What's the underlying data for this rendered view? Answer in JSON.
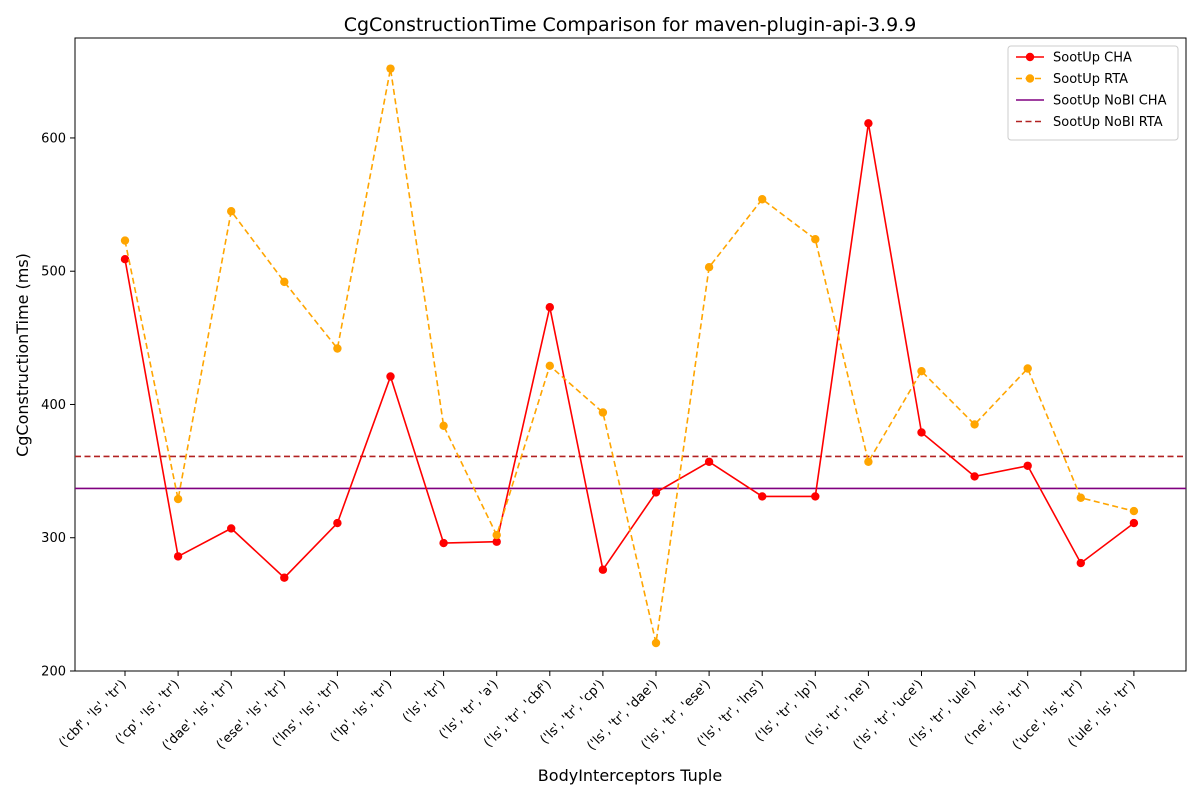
{
  "chart_data": {
    "type": "line",
    "title": "CgConstructionTime Comparison for maven-plugin-api-3.9.9",
    "xlabel": "BodyInterceptors Tuple",
    "ylabel": "CgConstructionTime (ms)",
    "ylim": [
      200,
      675
    ],
    "yticks": [
      200,
      300,
      400,
      500,
      600
    ],
    "grid": false,
    "legend_position": "top-right",
    "categories": [
      "('cbf', 'ls', 'tr')",
      "('cp', 'ls', 'tr')",
      "('dae', 'ls', 'tr')",
      "('ese', 'ls', 'tr')",
      "('lns', 'ls', 'tr')",
      "('lp', 'ls', 'tr')",
      "('ls', 'tr')",
      "('ls', 'tr', 'a')",
      "('ls', 'tr', 'cbf')",
      "('ls', 'tr', 'cp')",
      "('ls', 'tr', 'dae')",
      "('ls', 'tr', 'ese')",
      "('ls', 'tr', 'lns')",
      "('ls', 'tr', 'lp')",
      "('ls', 'tr', 'ne')",
      "('ls', 'tr', 'uce')",
      "('ls', 'tr', 'ule')",
      "('ne', 'ls', 'tr')",
      "('uce', 'ls', 'tr')",
      "('ule', 'ls', 'tr')"
    ],
    "series": [
      {
        "name": "SootUp CHA",
        "color": "#ff0000",
        "style": "solid",
        "marker": true,
        "values": [
          509,
          286,
          307,
          270,
          311,
          421,
          296,
          297,
          473,
          276,
          334,
          357,
          331,
          331,
          611,
          379,
          346,
          354,
          281,
          311
        ]
      },
      {
        "name": "SootUp RTA",
        "color": "#ffa500",
        "style": "dashed",
        "marker": true,
        "values": [
          523,
          329,
          545,
          492,
          442,
          652,
          384,
          302,
          429,
          394,
          221,
          503,
          554,
          524,
          357,
          425,
          385,
          427,
          330,
          320
        ]
      },
      {
        "name": "SootUp NoBI CHA",
        "color": "#800080",
        "style": "solid",
        "marker": false,
        "constant": 337
      },
      {
        "name": "SootUp NoBI RTA",
        "color": "#b22222",
        "style": "dashed",
        "marker": false,
        "constant": 361
      }
    ]
  }
}
